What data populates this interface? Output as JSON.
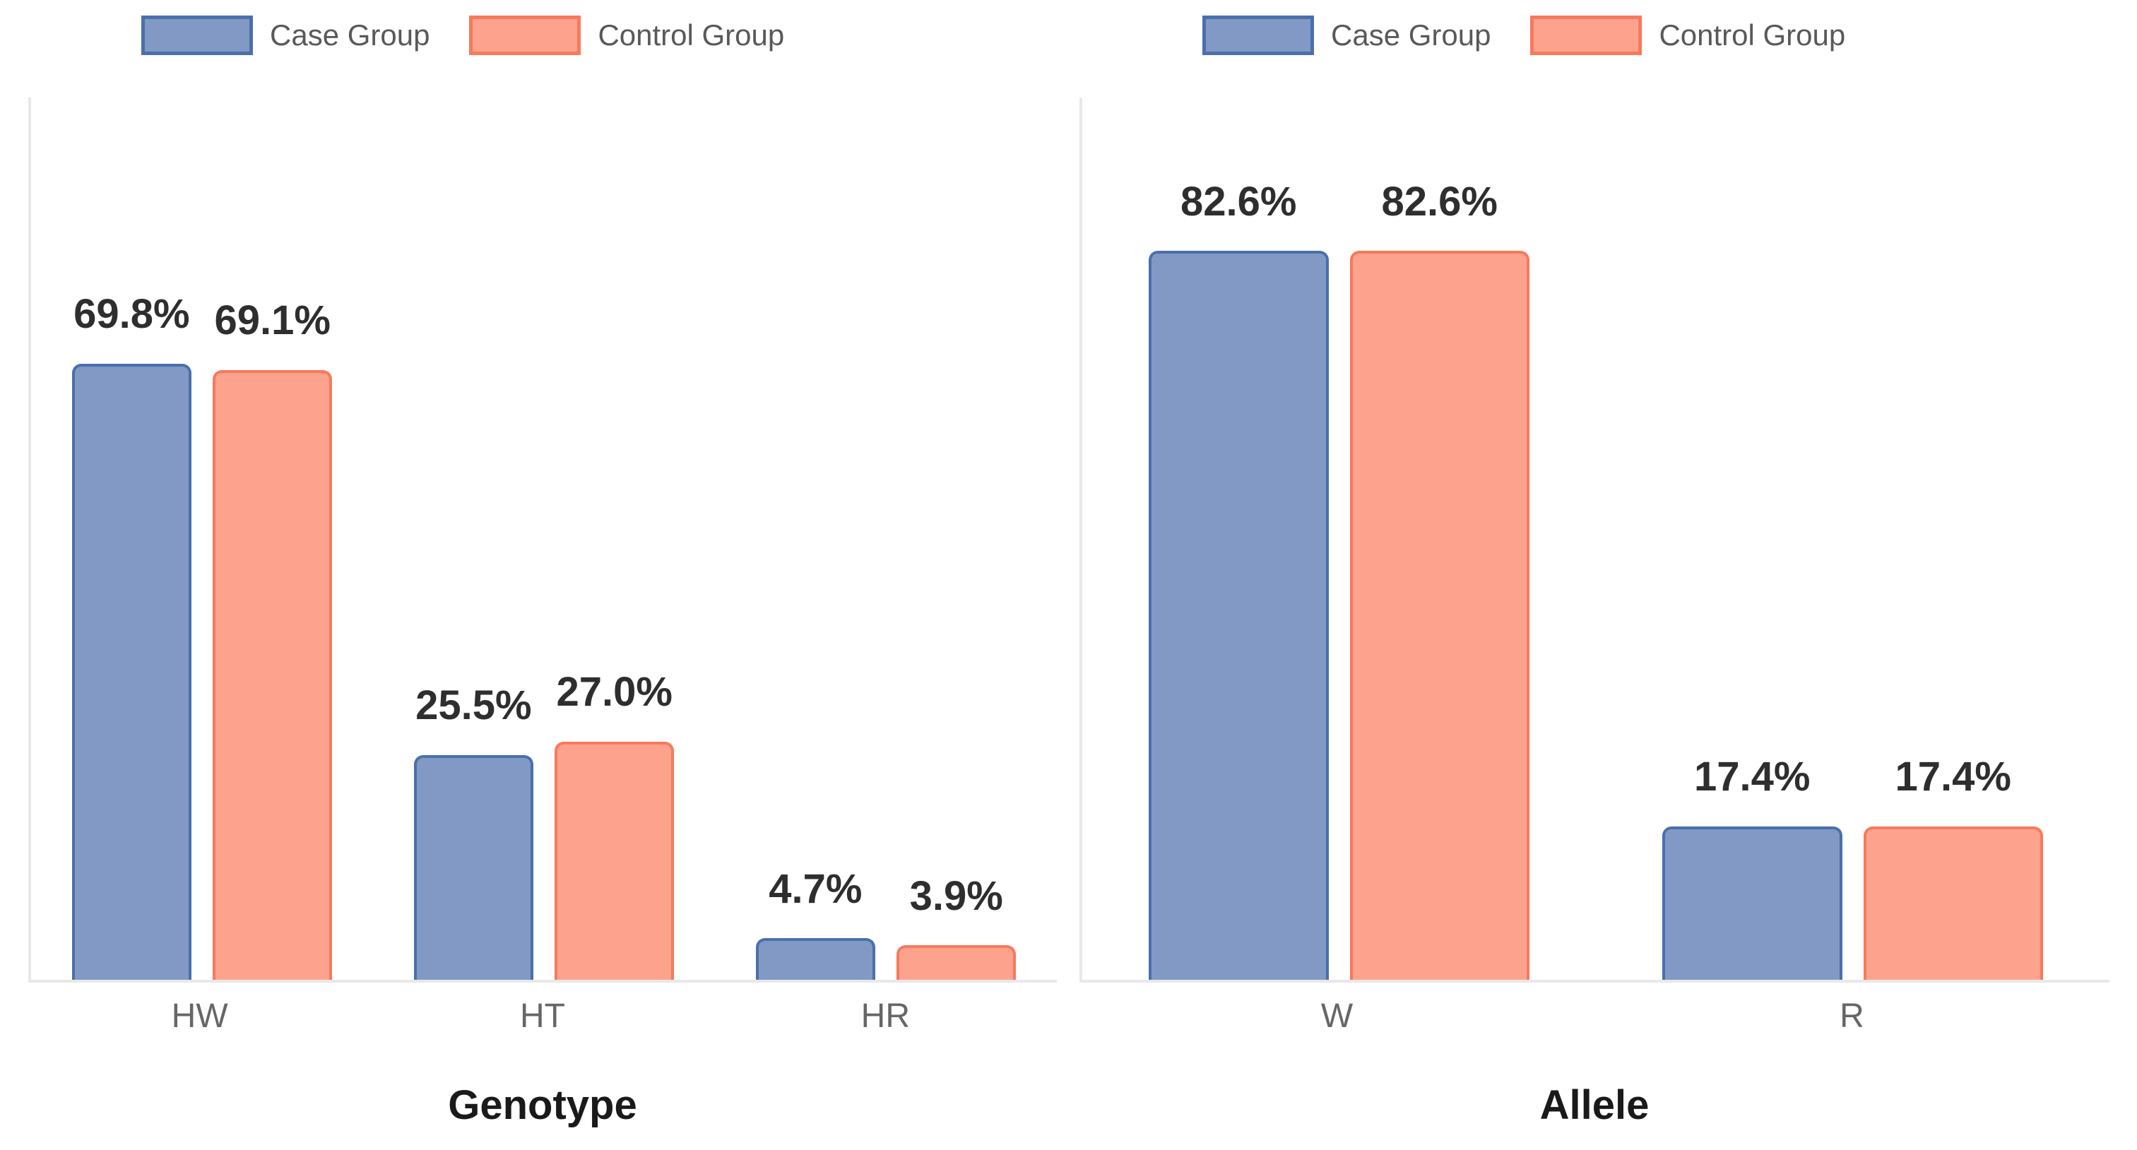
{
  "colors": {
    "case_fill": "#8199C4",
    "case_border": "#4A70AB",
    "control_fill": "#FDA38D",
    "control_border": "#F8795B",
    "axis_line": "#E8E8E8",
    "label_text": "#2E2E2E",
    "tick_text": "#666666",
    "legend_text": "#595959",
    "title_text": "#1A1A1A"
  },
  "chart_data": [
    {
      "type": "bar",
      "title": "",
      "xlabel": "Genotype",
      "ylabel": "",
      "ylim": [
        0,
        100
      ],
      "grid": false,
      "legend_position": "top",
      "legend": [
        "Case Group",
        "Control Group"
      ],
      "categories": [
        "HW",
        "HT",
        "HR"
      ],
      "series": [
        {
          "name": "Case Group",
          "values": [
            69.8,
            25.5,
            4.7
          ],
          "labels": [
            "69.8%",
            "25.5%",
            "4.7%"
          ]
        },
        {
          "name": "Control Group",
          "values": [
            69.1,
            27.0,
            3.9
          ],
          "labels": [
            "69.1%",
            "27.0%",
            "3.9%"
          ]
        }
      ]
    },
    {
      "type": "bar",
      "title": "",
      "xlabel": "Allele",
      "ylabel": "",
      "ylim": [
        0,
        100
      ],
      "grid": false,
      "legend_position": "top",
      "legend": [
        "Case Group",
        "Control Group"
      ],
      "categories": [
        "W",
        "R"
      ],
      "series": [
        {
          "name": "Case Group",
          "values": [
            82.6,
            17.4
          ],
          "labels": [
            "82.6%",
            "17.4%"
          ]
        },
        {
          "name": "Control Group",
          "values": [
            82.6,
            17.4
          ],
          "labels": [
            "82.6%",
            "17.4%"
          ]
        }
      ]
    }
  ]
}
